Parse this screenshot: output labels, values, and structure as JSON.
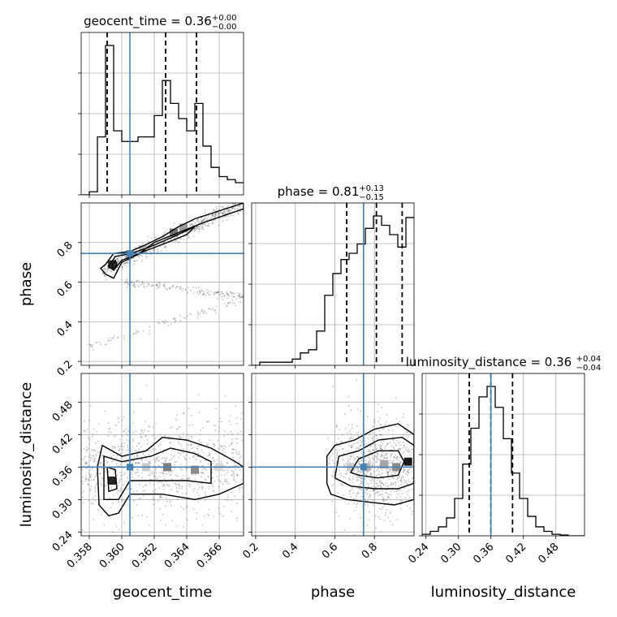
{
  "chart_data": {
    "type": "corner",
    "grid": true,
    "colors": {
      "truth": "#4682b4",
      "hist": "#000000",
      "contour": "#000000",
      "samples": "#555555"
    },
    "parameters": [
      {
        "name": "geocent_time",
        "range": [
          0.3575,
          0.3675
        ],
        "ticks": [
          "0.358",
          "0.360",
          "0.362",
          "0.364",
          "0.366"
        ],
        "tick_values": [
          0.358,
          0.36,
          0.362,
          0.364,
          0.366
        ],
        "truth": 0.3605
      },
      {
        "name": "phase",
        "range": [
          0.18,
          1.0
        ],
        "ticks": [
          "0.2",
          "0.4",
          "0.6",
          "0.8"
        ],
        "tick_values": [
          0.2,
          0.4,
          0.6,
          0.8
        ],
        "truth": 0.745
      },
      {
        "name": "luminosity_distance",
        "range": [
          0.233,
          0.533
        ],
        "ticks": [
          "0.24",
          "0.30",
          "0.36",
          "0.42",
          "0.48"
        ],
        "tick_values": [
          0.24,
          0.3,
          0.36,
          0.42,
          0.48
        ],
        "truth": 0.36
      }
    ],
    "titles": [
      {
        "prefix": "geocent_time = 0.36",
        "plus": "+0.00",
        "minus": "−0.00"
      },
      {
        "prefix": "phase = 0.81",
        "plus": "+0.13",
        "minus": "−0.15"
      },
      {
        "prefix": "luminosity_distance = 0.36",
        "plus": "+0.04",
        "minus": "−0.04"
      }
    ],
    "axis_labels": {
      "x": [
        "geocent_time",
        "phase",
        "luminosity_distance"
      ],
      "y": [
        "phase",
        "luminosity_distance"
      ]
    },
    "marginals": [
      {
        "param": "geocent_time",
        "bin_edges": [
          0.3575,
          0.358,
          0.3585,
          0.359,
          0.3595,
          0.36,
          0.3605,
          0.361,
          0.3615,
          0.362,
          0.3625,
          0.363,
          0.3635,
          0.364,
          0.3645,
          0.365,
          0.3655,
          0.366,
          0.3665,
          0.367,
          0.3675
        ],
        "counts": [
          0.0,
          0.02,
          0.38,
          0.98,
          0.42,
          0.35,
          0.35,
          0.38,
          0.38,
          0.52,
          0.75,
          0.6,
          0.5,
          0.42,
          0.6,
          0.32,
          0.18,
          0.12,
          0.1,
          0.08
        ],
        "quantiles": [
          0.3591,
          0.3627,
          0.3646
        ]
      },
      {
        "param": "phase",
        "bin_edges": [
          0.18,
          0.221,
          0.262,
          0.303,
          0.344,
          0.385,
          0.426,
          0.467,
          0.508,
          0.549,
          0.59,
          0.631,
          0.672,
          0.713,
          0.754,
          0.795,
          0.836,
          0.877,
          0.918,
          0.959,
          1.0
        ],
        "counts": [
          0.0,
          0.02,
          0.02,
          0.02,
          0.02,
          0.04,
          0.08,
          0.1,
          0.22,
          0.45,
          0.59,
          0.68,
          0.72,
          0.78,
          0.88,
          0.96,
          0.9,
          0.84,
          0.76,
          0.95
        ],
        "quantiles": [
          0.66,
          0.81,
          0.94
        ]
      },
      {
        "param": "luminosity_distance",
        "bin_edges": [
          0.233,
          0.248,
          0.263,
          0.278,
          0.293,
          0.308,
          0.323,
          0.338,
          0.353,
          0.368,
          0.383,
          0.398,
          0.413,
          0.428,
          0.443,
          0.458,
          0.473,
          0.488,
          0.503,
          0.518,
          0.533
        ],
        "counts": [
          0.01,
          0.03,
          0.06,
          0.12,
          0.25,
          0.48,
          0.72,
          0.93,
          1.0,
          0.86,
          0.65,
          0.42,
          0.25,
          0.13,
          0.06,
          0.03,
          0.01,
          0.005,
          0.0,
          0.0
        ],
        "quantiles": [
          0.32,
          0.36,
          0.4
        ]
      }
    ],
    "joint": [
      {
        "x": "geocent_time",
        "y": "phase",
        "contours": [
          [
            [
              0.359,
              0.69
            ],
            [
              0.3595,
              0.745
            ],
            [
              0.3605,
              0.755
            ],
            [
              0.3615,
              0.79
            ],
            [
              0.3625,
              0.83
            ],
            [
              0.3635,
              0.88
            ],
            [
              0.3645,
              0.92
            ],
            [
              0.366,
              0.96
            ],
            [
              0.3675,
              1.0
            ],
            [
              0.3675,
              0.97
            ],
            [
              0.365,
              0.9
            ],
            [
              0.3635,
              0.85
            ],
            [
              0.362,
              0.8
            ],
            [
              0.361,
              0.74
            ],
            [
              0.36,
              0.7
            ],
            [
              0.3595,
              0.62
            ],
            [
              0.359,
              0.64
            ],
            [
              0.3587,
              0.67
            ]
          ],
          [
            [
              0.3592,
              0.68
            ],
            [
              0.3596,
              0.73
            ],
            [
              0.3606,
              0.745
            ],
            [
              0.3618,
              0.78
            ],
            [
              0.3632,
              0.83
            ],
            [
              0.3645,
              0.88
            ],
            [
              0.364,
              0.84
            ],
            [
              0.3628,
              0.8
            ],
            [
              0.3612,
              0.75
            ],
            [
              0.36,
              0.71
            ],
            [
              0.3595,
              0.66
            ]
          ],
          [
            [
              0.3594,
              0.685
            ],
            [
              0.3596,
              0.71
            ],
            [
              0.3597,
              0.69
            ],
            [
              0.3595,
              0.665
            ]
          ]
        ],
        "hist_cells": [
          [
            0.3594,
            0.69,
            0.8
          ],
          [
            0.3632,
            0.85,
            0.55
          ],
          [
            0.3638,
            0.875,
            0.4
          ],
          [
            0.3605,
            0.74,
            0.35
          ],
          [
            0.3613,
            0.765,
            0.3
          ]
        ]
      },
      {
        "x": "geocent_time",
        "y": "luminosity_distance",
        "contours": [
          [
            [
              0.3586,
              0.29
            ],
            [
              0.3585,
              0.36
            ],
            [
              0.3588,
              0.4
            ],
            [
              0.36,
              0.38
            ],
            [
              0.3615,
              0.39
            ],
            [
              0.3625,
              0.415
            ],
            [
              0.364,
              0.41
            ],
            [
              0.3655,
              0.395
            ],
            [
              0.367,
              0.37
            ],
            [
              0.3675,
              0.36
            ],
            [
              0.3675,
              0.33
            ],
            [
              0.366,
              0.31
            ],
            [
              0.3645,
              0.3
            ],
            [
              0.3625,
              0.31
            ],
            [
              0.3605,
              0.31
            ],
            [
              0.3598,
              0.275
            ],
            [
              0.3592,
              0.27
            ]
          ],
          [
            [
              0.3589,
              0.3
            ],
            [
              0.3589,
              0.38
            ],
            [
              0.36,
              0.37
            ],
            [
              0.3618,
              0.38
            ],
            [
              0.363,
              0.395
            ],
            [
              0.3645,
              0.385
            ],
            [
              0.3655,
              0.37
            ],
            [
              0.3655,
              0.33
            ],
            [
              0.364,
              0.335
            ],
            [
              0.362,
              0.335
            ],
            [
              0.3605,
              0.335
            ],
            [
              0.3598,
              0.3
            ]
          ],
          [
            [
              0.3592,
              0.315
            ],
            [
              0.3591,
              0.36
            ],
            [
              0.3596,
              0.355
            ],
            [
              0.3597,
              0.32
            ]
          ]
        ],
        "hist_cells": [
          [
            0.3594,
            0.335,
            0.85
          ],
          [
            0.3628,
            0.36,
            0.5
          ],
          [
            0.3645,
            0.355,
            0.45
          ],
          [
            0.3615,
            0.36,
            0.2
          ],
          [
            0.366,
            0.36,
            0.15
          ]
        ]
      },
      {
        "x": "phase",
        "y": "luminosity_distance",
        "contours": [
          [
            [
              0.56,
              0.33
            ],
            [
              0.56,
              0.38
            ],
            [
              0.6,
              0.4
            ],
            [
              0.7,
              0.41
            ],
            [
              0.8,
              0.43
            ],
            [
              0.92,
              0.44
            ],
            [
              1.0,
              0.42
            ],
            [
              1.0,
              0.3
            ],
            [
              0.9,
              0.29
            ],
            [
              0.78,
              0.295
            ],
            [
              0.66,
              0.3
            ],
            [
              0.58,
              0.31
            ]
          ],
          [
            [
              0.6,
              0.34
            ],
            [
              0.62,
              0.38
            ],
            [
              0.72,
              0.39
            ],
            [
              0.82,
              0.41
            ],
            [
              0.94,
              0.415
            ],
            [
              1.0,
              0.4
            ],
            [
              1.0,
              0.33
            ],
            [
              0.92,
              0.32
            ],
            [
              0.8,
              0.32
            ],
            [
              0.68,
              0.325
            ]
          ],
          [
            [
              0.68,
              0.35
            ],
            [
              0.72,
              0.375
            ],
            [
              0.82,
              0.39
            ],
            [
              0.92,
              0.39
            ],
            [
              0.95,
              0.37
            ],
            [
              0.92,
              0.345
            ],
            [
              0.82,
              0.34
            ],
            [
              0.72,
              0.345
            ]
          ]
        ],
        "hist_cells": [
          [
            0.97,
            0.37,
            0.9
          ],
          [
            0.91,
            0.36,
            0.45
          ],
          [
            0.85,
            0.365,
            0.35
          ],
          [
            0.76,
            0.36,
            0.3
          ],
          [
            0.68,
            0.36,
            0.2
          ]
        ]
      }
    ]
  }
}
